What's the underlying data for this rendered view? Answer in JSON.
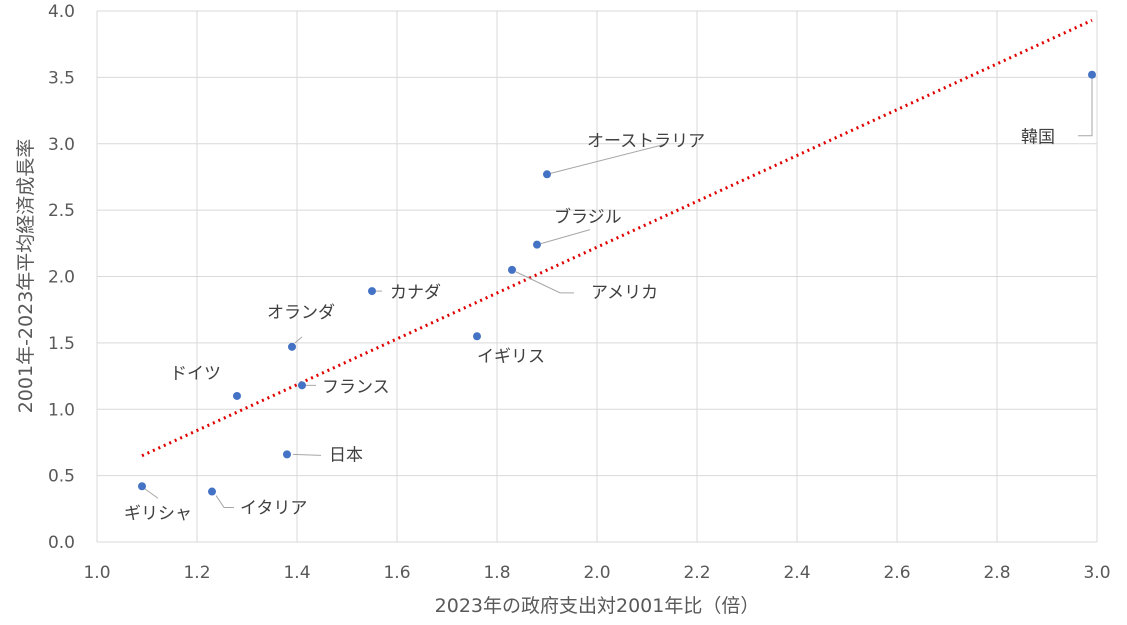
{
  "chart_data": {
    "type": "scatter",
    "xlabel": "2023年の政府支出対2001年比（倍）",
    "ylabel": "2001年-2023年平均経済成長率",
    "xlim": [
      1.0,
      3.0
    ],
    "ylim": [
      0.0,
      4.0
    ],
    "xticks": [
      "1.0",
      "1.2",
      "1.4",
      "1.6",
      "1.8",
      "2.0",
      "2.2",
      "2.4",
      "2.6",
      "2.8",
      "3.0"
    ],
    "yticks": [
      "0.0",
      "0.5",
      "1.0",
      "1.5",
      "2.0",
      "2.5",
      "3.0",
      "3.5",
      "4.0"
    ],
    "grid": true,
    "marker_color": "#4472C4",
    "trendline": {
      "style": "dotted",
      "color": "#E00000",
      "x": [
        1.09,
        2.99
      ],
      "y": [
        0.65,
        3.93
      ]
    },
    "points": [
      {
        "label": "ギリシャ",
        "x": 1.09,
        "y": 0.42
      },
      {
        "label": "イタリア",
        "x": 1.23,
        "y": 0.38
      },
      {
        "label": "ドイツ",
        "x": 1.28,
        "y": 1.1
      },
      {
        "label": "日本",
        "x": 1.38,
        "y": 0.66
      },
      {
        "label": "オランダ",
        "x": 1.39,
        "y": 1.47
      },
      {
        "label": "フランス",
        "x": 1.41,
        "y": 1.18
      },
      {
        "label": "カナダ",
        "x": 1.55,
        "y": 1.89
      },
      {
        "label": "イギリス",
        "x": 1.76,
        "y": 1.55
      },
      {
        "label": "アメリカ",
        "x": 1.83,
        "y": 2.05
      },
      {
        "label": "ブラジル",
        "x": 1.88,
        "y": 2.24
      },
      {
        "label": "オーストラリア",
        "x": 1.9,
        "y": 2.77
      },
      {
        "label": "韓国",
        "x": 2.99,
        "y": 3.52
      }
    ]
  }
}
